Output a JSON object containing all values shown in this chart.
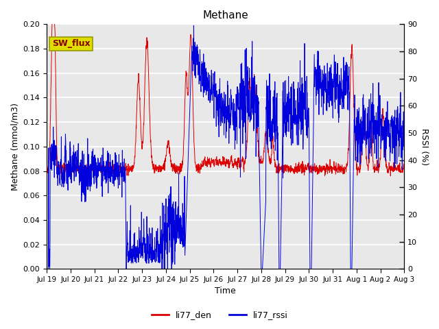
{
  "title": "Methane",
  "ylabel_left": "Methane (mmol/m3)",
  "ylabel_right": "RSSI (%)",
  "xlabel": "Time",
  "ylim_left": [
    0.0,
    0.2
  ],
  "ylim_right": [
    0,
    90
  ],
  "yticks_left": [
    0.0,
    0.02,
    0.04,
    0.06,
    0.08,
    0.1,
    0.12,
    0.14,
    0.16,
    0.18,
    0.2
  ],
  "yticks_right": [
    0,
    10,
    20,
    30,
    40,
    50,
    60,
    70,
    80,
    90
  ],
  "xtick_labels": [
    "Jul 19",
    "Jul 20",
    "Jul 21",
    "Jul 22",
    "Jul 23",
    "Jul 24",
    "Jul 25",
    "Jul 26",
    "Jul 27",
    "Jul 28",
    "Jul 29",
    "Jul 30",
    "Jul 31",
    "Aug 1",
    "Aug 2",
    "Aug 3"
  ],
  "color_den": "#dd0000",
  "color_rssi": "#0000dd",
  "legend_labels": [
    "li77_den",
    "li77_rssi"
  ],
  "sw_flux_label": "SW_flux",
  "sw_flux_bg": "#dddd00",
  "sw_flux_fg": "#880000",
  "background_color": "#e8e8e8",
  "n_points": 2000,
  "seed": 7
}
